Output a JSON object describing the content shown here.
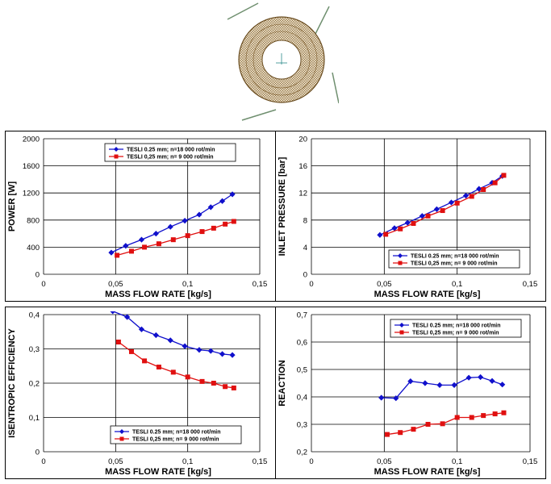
{
  "figure": {
    "legend_names": [
      "TESLI 0.25 mm; n=18 000 rot/min",
      "TESLI 0,25 mm; n=  9 000  rot/min"
    ],
    "series_colors": [
      "#1010cc",
      "#e01010"
    ],
    "turbine_image": {
      "description_icon": "tesla-turbine-mesh-image"
    }
  },
  "chart_data": [
    {
      "type": "line",
      "title": "",
      "xlabel": "MASS FLOW RATE [kg/s]",
      "ylabel": "POWER [W]",
      "xlim": [
        0,
        0.15
      ],
      "ylim": [
        0,
        2000
      ],
      "xticks": [
        "0",
        "0,05",
        "0,1",
        "0,15"
      ],
      "yticks": [
        "0",
        "400",
        "800",
        "1200",
        "1600",
        "2000"
      ],
      "grid": "major",
      "legend_position": "top-center",
      "series": [
        {
          "name": "TESLI 0.25 mm; n=18 000 rot/min",
          "marker": "diamond",
          "color": "#1010cc",
          "x": [
            0.047,
            0.057,
            0.068,
            0.078,
            0.088,
            0.098,
            0.108,
            0.116,
            0.124,
            0.131
          ],
          "y": [
            320,
            420,
            510,
            600,
            700,
            790,
            880,
            990,
            1080,
            1180
          ]
        },
        {
          "name": "TESLI 0,25 mm; n=  9 000  rot/min",
          "marker": "square",
          "color": "#e01010",
          "x": [
            0.051,
            0.061,
            0.07,
            0.08,
            0.09,
            0.1,
            0.11,
            0.118,
            0.126,
            0.132
          ],
          "y": [
            280,
            340,
            400,
            450,
            510,
            570,
            630,
            680,
            740,
            780
          ]
        }
      ]
    },
    {
      "type": "line",
      "title": "",
      "xlabel": "MASS FLOW RATE [kg/s]",
      "ylabel": "INLET PRESSURE [bar]",
      "xlim": [
        0,
        0.15
      ],
      "ylim": [
        0,
        20
      ],
      "xticks": [
        "0",
        "0,05",
        "0,1",
        "0,15"
      ],
      "yticks": [
        "0",
        "4",
        "8",
        "12",
        "16",
        "20"
      ],
      "grid": "major",
      "legend_position": "bottom-right",
      "series": [
        {
          "name": "TESLI 0.25 mm; n=18 000 rot/min",
          "marker": "diamond",
          "color": "#1010cc",
          "x": [
            0.047,
            0.057,
            0.066,
            0.076,
            0.086,
            0.096,
            0.106,
            0.115,
            0.124,
            0.131
          ],
          "y": [
            5.8,
            6.8,
            7.6,
            8.6,
            9.6,
            10.6,
            11.6,
            12.6,
            13.5,
            14.5
          ]
        },
        {
          "name": "TESLI 0,25 mm; n=  9 000  rot/min",
          "marker": "square",
          "color": "#e01010",
          "x": [
            0.051,
            0.061,
            0.07,
            0.08,
            0.09,
            0.1,
            0.11,
            0.118,
            0.126,
            0.132
          ],
          "y": [
            5.9,
            6.7,
            7.5,
            8.6,
            9.4,
            10.5,
            11.5,
            12.5,
            13.5,
            14.6
          ]
        }
      ]
    },
    {
      "type": "line",
      "title": "",
      "xlabel": "MASS FLOW RATE [kg/s]",
      "ylabel": "ISENTROPIC EFFICIENCY",
      "xlim": [
        0,
        0.15
      ],
      "ylim": [
        0,
        0.4
      ],
      "xticks": [
        "0",
        "0,05",
        "0,1",
        "0,15"
      ],
      "yticks": [
        "0",
        "0,1",
        "0,2",
        "0,3",
        "0,4"
      ],
      "grid": "major",
      "legend_position": "bottom-right",
      "series": [
        {
          "name": "TESLI 0.25 mm; n=18 000 rot/min",
          "marker": "diamond",
          "color": "#1010cc",
          "x": [
            0.048,
            0.058,
            0.068,
            0.078,
            0.088,
            0.098,
            0.108,
            0.116,
            0.124,
            0.131
          ],
          "y": [
            0.41,
            0.393,
            0.357,
            0.34,
            0.325,
            0.308,
            0.297,
            0.294,
            0.285,
            0.282
          ]
        },
        {
          "name": "TESLI 0,25 mm; n=  9 000  rot/min",
          "marker": "square",
          "color": "#e01010",
          "x": [
            0.052,
            0.061,
            0.07,
            0.08,
            0.09,
            0.1,
            0.11,
            0.118,
            0.126,
            0.132
          ],
          "y": [
            0.32,
            0.292,
            0.265,
            0.247,
            0.232,
            0.218,
            0.205,
            0.2,
            0.19,
            0.186
          ]
        }
      ]
    },
    {
      "type": "line",
      "title": "",
      "xlabel": "MASS FLOW RATE [kg/s]",
      "ylabel": "REACTION",
      "xlim": [
        0,
        0.15
      ],
      "ylim": [
        0.2,
        0.7
      ],
      "xticks": [
        "0",
        "0,05",
        "0,1",
        "0,15"
      ],
      "yticks": [
        "0,2",
        "0,3",
        "0,4",
        "0,5",
        "0,6",
        "0,7"
      ],
      "grid": "major",
      "legend_position": "top-center",
      "series": [
        {
          "name": "TESLI 0.25 mm; n=18 000 rot/min",
          "marker": "diamond",
          "color": "#1010cc",
          "x": [
            0.048,
            0.058,
            0.068,
            0.078,
            0.088,
            0.098,
            0.108,
            0.116,
            0.124,
            0.131
          ],
          "y": [
            0.397,
            0.395,
            0.457,
            0.45,
            0.443,
            0.443,
            0.47,
            0.472,
            0.458,
            0.445
          ]
        },
        {
          "name": "TESLI 0,25 mm; n=  9 000  rot/min",
          "marker": "square",
          "color": "#e01010",
          "x": [
            0.052,
            0.061,
            0.07,
            0.08,
            0.09,
            0.1,
            0.11,
            0.118,
            0.126,
            0.132
          ],
          "y": [
            0.263,
            0.27,
            0.282,
            0.3,
            0.302,
            0.325,
            0.325,
            0.332,
            0.338,
            0.342
          ]
        }
      ]
    }
  ]
}
